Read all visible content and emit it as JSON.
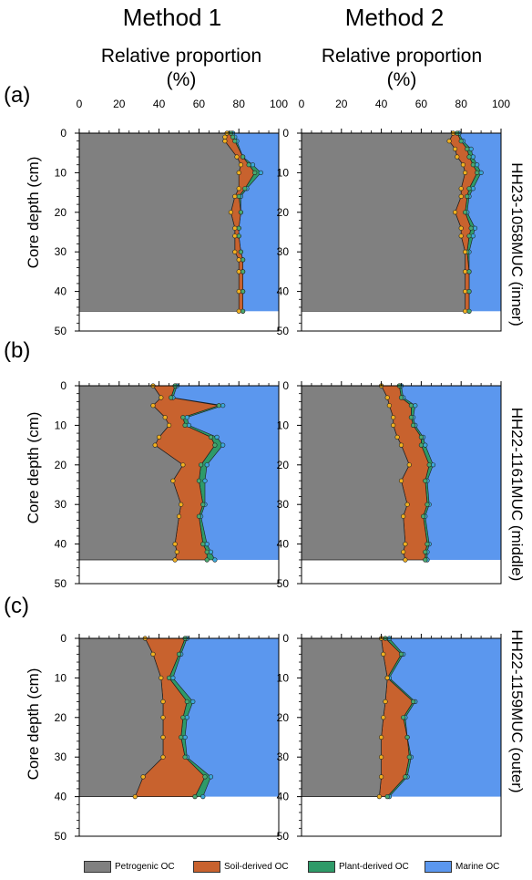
{
  "headers": {
    "method_1": "Method 1",
    "method_2": "Method 2",
    "axis_title_line1": "Relative proportion",
    "axis_title_line2": "(%)"
  },
  "y_label": "Core depth (cm)",
  "panel_labels": [
    "(a)",
    "(b)",
    "(c)"
  ],
  "core_labels": [
    "HH23-1058MUC (inner)",
    "HH22-1161MUC (middle)",
    "HH22-1159MUC (outer)"
  ],
  "x_ticks": [
    "0",
    "20",
    "40",
    "60",
    "80",
    "100"
  ],
  "y_ticks": [
    "0",
    "10",
    "20",
    "30",
    "40",
    "50"
  ],
  "legend": [
    {
      "label": "Petrogenic OC",
      "color": "#808080"
    },
    {
      "label": "Soil-derived OC",
      "color": "#c8622e"
    },
    {
      "label": "Plant-derived OC",
      "color": "#2e9a68"
    },
    {
      "label": "Marine OC",
      "color": "#5b97ee"
    }
  ],
  "colors": {
    "petrogenic": "#808080",
    "soil": "#c8622e",
    "plant": "#2e9a68",
    "marine": "#5b97ee",
    "pt_petro": "#f0b020",
    "pt_soil": "#4aa870",
    "pt_plant": "#3aa8d8"
  },
  "chart_data": [
    {
      "type": "area",
      "panel": "(a)",
      "method": "Method 1",
      "core": "HH23-1058MUC (inner)",
      "xlim": [
        0,
        100
      ],
      "ylim": [
        50,
        0
      ],
      "core_bottom": 45,
      "depth": [
        0,
        1,
        2,
        6,
        8,
        10,
        14,
        16,
        20,
        24,
        26,
        30,
        32,
        35,
        40,
        45
      ],
      "petrogenic": [
        74,
        73,
        73,
        79,
        81,
        80,
        80,
        78,
        76,
        78,
        78,
        78,
        80,
        80,
        80,
        80
      ],
      "soil_top": [
        76,
        77,
        78,
        82,
        85,
        88,
        83,
        80,
        81,
        80,
        80,
        81,
        82,
        82,
        82,
        82
      ],
      "plant_top": [
        77,
        78,
        79,
        82,
        87,
        91,
        84,
        81,
        81,
        80,
        80,
        81,
        82,
        82,
        82,
        82
      ]
    },
    {
      "type": "area",
      "panel": "(a)",
      "method": "Method 2",
      "core": "HH23-1058MUC (inner)",
      "xlim": [
        0,
        100
      ],
      "ylim": [
        50,
        0
      ],
      "core_bottom": 45,
      "depth": [
        0,
        2,
        4,
        6,
        8,
        10,
        14,
        16,
        20,
        24,
        26,
        30,
        35,
        40,
        45
      ],
      "petrogenic": [
        76,
        74,
        77,
        78,
        81,
        82,
        80,
        80,
        77,
        80,
        80,
        82,
        82,
        82,
        82
      ],
      "soil_top": [
        78,
        80,
        83,
        84,
        86,
        88,
        84,
        83,
        82,
        85,
        84,
        83,
        84,
        84,
        84
      ],
      "plant_top": [
        79,
        81,
        85,
        86,
        88,
        90,
        86,
        84,
        83,
        87,
        86,
        84,
        84,
        84,
        84
      ]
    },
    {
      "type": "area",
      "panel": "(b)",
      "method": "Method 1",
      "core": "HH22-1161MUC (middle)",
      "xlim": [
        0,
        100
      ],
      "ylim": [
        50,
        0
      ],
      "core_bottom": 44,
      "depth": [
        0,
        3,
        5,
        8,
        10,
        13,
        15,
        20,
        24,
        30,
        33,
        40,
        42,
        44
      ],
      "petrogenic": [
        37,
        41,
        37,
        43,
        45,
        40,
        38,
        52,
        47,
        51,
        50,
        48,
        49,
        48
      ],
      "soil_top": [
        48,
        46,
        70,
        52,
        53,
        66,
        68,
        61,
        60,
        62,
        60,
        62,
        64,
        64
      ],
      "plant_top": [
        49,
        47,
        72,
        54,
        55,
        69,
        72,
        64,
        63,
        63,
        61,
        64,
        66,
        68
      ]
    },
    {
      "type": "area",
      "panel": "(b)",
      "method": "Method 2",
      "core": "HH22-1161MUC (middle)",
      "xlim": [
        0,
        100
      ],
      "ylim": [
        50,
        0
      ],
      "core_bottom": 44,
      "depth": [
        0,
        3,
        5,
        8,
        10,
        13,
        15,
        20,
        24,
        30,
        33,
        40,
        42,
        44
      ],
      "petrogenic": [
        40,
        43,
        44,
        46,
        46,
        48,
        50,
        54,
        50,
        53,
        51,
        52,
        51,
        52
      ],
      "soil_top": [
        49,
        50,
        55,
        55,
        56,
        60,
        60,
        64,
        62,
        63,
        61,
        63,
        62,
        62
      ],
      "plant_top": [
        50,
        51,
        57,
        56,
        57,
        61,
        62,
        66,
        63,
        64,
        62,
        64,
        63,
        63
      ]
    },
    {
      "type": "area",
      "panel": "(c)",
      "method": "Method 1",
      "core": "HH22-1159MUC (outer)",
      "xlim": [
        0,
        100
      ],
      "ylim": [
        50,
        0
      ],
      "core_bottom": 40,
      "depth": [
        0,
        4,
        10,
        16,
        20,
        25,
        30,
        35,
        40
      ],
      "petrogenic": [
        33,
        37,
        41,
        42,
        42,
        42,
        42,
        32,
        28
      ],
      "soil_top": [
        53,
        50,
        45,
        54,
        52,
        51,
        53,
        63,
        58
      ],
      "plant_top": [
        54,
        51,
        47,
        57,
        54,
        53,
        54,
        66,
        62
      ]
    },
    {
      "type": "area",
      "panel": "(c)",
      "method": "Method 2",
      "core": "HH22-1159MUC (outer)",
      "xlim": [
        0,
        100
      ],
      "ylim": [
        50,
        0
      ],
      "core_bottom": 40,
      "depth": [
        0,
        4,
        10,
        16,
        20,
        25,
        30,
        35,
        40
      ],
      "petrogenic": [
        40,
        41,
        43,
        42,
        41,
        40,
        40,
        40,
        39
      ],
      "soil_top": [
        42,
        50,
        43,
        56,
        51,
        53,
        54,
        52,
        43
      ],
      "plant_top": [
        44,
        51,
        44,
        57,
        52,
        53,
        55,
        53,
        44
      ]
    }
  ]
}
